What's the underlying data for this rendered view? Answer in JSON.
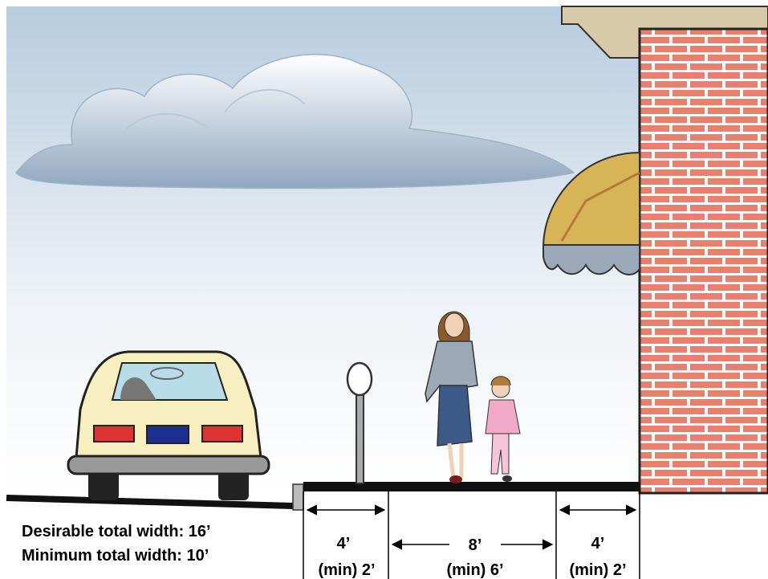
{
  "notes": [
    "Desirable total width: 16’",
    "Minimum total width: 10’"
  ],
  "zones": [
    {
      "width": "4’",
      "minimum": "(min) 2’"
    },
    {
      "width": "8’",
      "minimum": "(min) 6’"
    },
    {
      "width": "4’",
      "minimum": "(min) 2’"
    }
  ]
}
